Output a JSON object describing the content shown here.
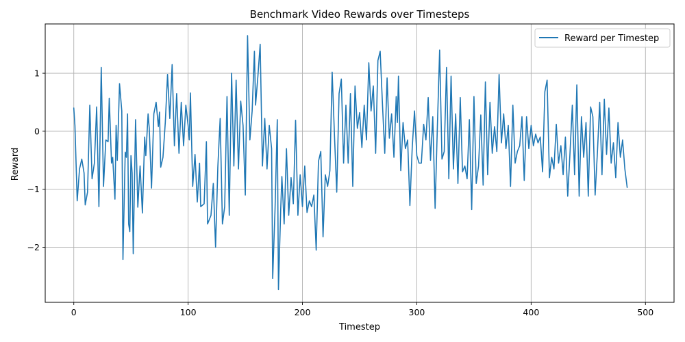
{
  "chart_data": {
    "type": "line",
    "title": "Benchmark Video Rewards over Timesteps",
    "xlabel": "Timestep",
    "ylabel": "Reward",
    "xlim": [
      -25,
      525
    ],
    "ylim": [
      -2.95,
      1.85
    ],
    "xticks": [
      0,
      100,
      200,
      300,
      400,
      500
    ],
    "yticks": [
      -2,
      -1,
      0,
      1
    ],
    "grid": true,
    "legend_position": "upper right",
    "series": [
      {
        "name": "Reward per Timestep",
        "color": "#1f77b4",
        "keypoints": [
          [
            0,
            0.4
          ],
          [
            1,
            0.1
          ],
          [
            3,
            -1.2
          ],
          [
            5,
            -0.65
          ],
          [
            7,
            -0.48
          ],
          [
            9,
            -0.72
          ],
          [
            10,
            -1.27
          ],
          [
            12,
            -1.05
          ],
          [
            14,
            0.45
          ],
          [
            16,
            -0.82
          ],
          [
            18,
            -0.55
          ],
          [
            20,
            0.42
          ],
          [
            22,
            -1.3
          ],
          [
            24,
            1.1
          ],
          [
            26,
            -0.95
          ],
          [
            28,
            -0.15
          ],
          [
            30,
            -0.18
          ],
          [
            31,
            0.57
          ],
          [
            33,
            -0.55
          ],
          [
            34,
            -0.45
          ],
          [
            36,
            -1.17
          ],
          [
            37,
            0.1
          ],
          [
            38,
            -0.5
          ],
          [
            40,
            0.82
          ],
          [
            42,
            0.35
          ],
          [
            43,
            -2.21
          ],
          [
            45,
            -0.36
          ],
          [
            46,
            -0.45
          ],
          [
            47,
            0.3
          ],
          [
            48,
            -1.6
          ],
          [
            49,
            -1.73
          ],
          [
            50,
            -0.42
          ],
          [
            51,
            -0.72
          ],
          [
            52,
            -2.11
          ],
          [
            54,
            0.2
          ],
          [
            56,
            -1.31
          ],
          [
            58,
            -0.6
          ],
          [
            60,
            -1.41
          ],
          [
            62,
            -0.1
          ],
          [
            63,
            -0.42
          ],
          [
            65,
            0.3
          ],
          [
            66,
            0.05
          ],
          [
            68,
            -0.98
          ],
          [
            70,
            0.3
          ],
          [
            72,
            0.5
          ],
          [
            74,
            0.08
          ],
          [
            75,
            0.33
          ],
          [
            76,
            -0.62
          ],
          [
            78,
            -0.45
          ],
          [
            80,
            0.15
          ],
          [
            82,
            0.98
          ],
          [
            84,
            0.22
          ],
          [
            86,
            1.15
          ],
          [
            88,
            -0.25
          ],
          [
            90,
            0.65
          ],
          [
            92,
            -0.38
          ],
          [
            94,
            0.5
          ],
          [
            96,
            -0.25
          ],
          [
            98,
            0.45
          ],
          [
            100,
            0.1
          ],
          [
            101,
            -0.15
          ],
          [
            102,
            0.66
          ],
          [
            104,
            -0.95
          ],
          [
            106,
            -0.4
          ],
          [
            108,
            -1.22
          ],
          [
            110,
            -0.55
          ],
          [
            111,
            -1.3
          ],
          [
            114,
            -1.25
          ],
          [
            116,
            -0.18
          ],
          [
            117,
            -1.6
          ],
          [
            120,
            -1.45
          ],
          [
            122,
            -0.9
          ],
          [
            124,
            -2.0
          ],
          [
            126,
            -0.62
          ],
          [
            128,
            0.22
          ],
          [
            130,
            -1.6
          ],
          [
            132,
            -1.3
          ],
          [
            134,
            0.6
          ],
          [
            136,
            -1.45
          ],
          [
            138,
            1.0
          ],
          [
            140,
            -0.6
          ],
          [
            142,
            0.88
          ],
          [
            144,
            -0.65
          ],
          [
            146,
            0.52
          ],
          [
            148,
            0.1
          ],
          [
            150,
            -1.1
          ],
          [
            152,
            1.65
          ],
          [
            154,
            -0.15
          ],
          [
            156,
            0.35
          ],
          [
            158,
            1.38
          ],
          [
            159,
            0.45
          ],
          [
            161,
            0.95
          ],
          [
            163,
            1.5
          ],
          [
            165,
            -0.6
          ],
          [
            167,
            0.22
          ],
          [
            169,
            -0.65
          ],
          [
            171,
            0.1
          ],
          [
            173,
            -0.3
          ],
          [
            174,
            -2.54
          ],
          [
            176,
            -1.35
          ],
          [
            178,
            0.2
          ],
          [
            179,
            -2.73
          ],
          [
            181,
            -1.35
          ],
          [
            182,
            -0.78
          ],
          [
            184,
            -1.6
          ],
          [
            186,
            -0.3
          ],
          [
            188,
            -1.45
          ],
          [
            190,
            -0.8
          ],
          [
            192,
            -1.25
          ],
          [
            194,
            0.19
          ],
          [
            196,
            -1.45
          ],
          [
            198,
            -0.75
          ],
          [
            200,
            -1.3
          ],
          [
            202,
            -0.6
          ],
          [
            204,
            -1.4
          ],
          [
            206,
            -1.2
          ],
          [
            208,
            -1.3
          ],
          [
            210,
            -1.1
          ],
          [
            212,
            -2.05
          ],
          [
            214,
            -0.52
          ],
          [
            216,
            -0.35
          ],
          [
            218,
            -1.82
          ],
          [
            220,
            -0.75
          ],
          [
            222,
            -0.95
          ],
          [
            224,
            -0.68
          ],
          [
            226,
            1.02
          ],
          [
            228,
            -0.08
          ],
          [
            230,
            -1.05
          ],
          [
            232,
            0.65
          ],
          [
            234,
            0.9
          ],
          [
            236,
            -0.55
          ],
          [
            238,
            0.45
          ],
          [
            240,
            -0.55
          ],
          [
            242,
            0.65
          ],
          [
            244,
            -0.95
          ],
          [
            246,
            0.78
          ],
          [
            248,
            0.05
          ],
          [
            250,
            0.32
          ],
          [
            252,
            -0.28
          ],
          [
            254,
            0.45
          ],
          [
            256,
            -0.15
          ],
          [
            258,
            1.18
          ],
          [
            260,
            0.35
          ],
          [
            262,
            0.78
          ],
          [
            264,
            -0.38
          ],
          [
            266,
            1.22
          ],
          [
            268,
            1.38
          ],
          [
            270,
            0.45
          ],
          [
            272,
            -0.38
          ],
          [
            274,
            0.92
          ],
          [
            276,
            -0.12
          ],
          [
            278,
            0.3
          ],
          [
            280,
            -0.45
          ],
          [
            282,
            0.6
          ],
          [
            283,
            0.15
          ],
          [
            284,
            0.95
          ],
          [
            286,
            -0.68
          ],
          [
            288,
            0.15
          ],
          [
            290,
            -0.3
          ],
          [
            292,
            -0.15
          ],
          [
            294,
            -1.28
          ],
          [
            296,
            -0.28
          ],
          [
            298,
            0.35
          ],
          [
            300,
            -0.42
          ],
          [
            302,
            -0.55
          ],
          [
            304,
            -0.55
          ],
          [
            306,
            0.12
          ],
          [
            308,
            -0.15
          ],
          [
            310,
            0.58
          ],
          [
            312,
            -0.5
          ],
          [
            314,
            0.25
          ],
          [
            316,
            -1.33
          ],
          [
            318,
            0.08
          ],
          [
            320,
            1.4
          ],
          [
            322,
            -0.48
          ],
          [
            324,
            -0.35
          ],
          [
            326,
            1.1
          ],
          [
            328,
            -0.82
          ],
          [
            330,
            0.95
          ],
          [
            332,
            -0.65
          ],
          [
            334,
            0.3
          ],
          [
            336,
            -0.9
          ],
          [
            338,
            0.58
          ],
          [
            340,
            -0.7
          ],
          [
            342,
            -0.6
          ],
          [
            344,
            -0.82
          ],
          [
            346,
            0.2
          ],
          [
            348,
            -1.35
          ],
          [
            350,
            0.6
          ],
          [
            352,
            -0.9
          ],
          [
            354,
            -0.6
          ],
          [
            356,
            0.28
          ],
          [
            358,
            -0.93
          ],
          [
            360,
            0.85
          ],
          [
            362,
            -0.75
          ],
          [
            364,
            0.5
          ],
          [
            366,
            -0.38
          ],
          [
            368,
            0.08
          ],
          [
            370,
            -0.35
          ],
          [
            372,
            0.98
          ],
          [
            374,
            -0.2
          ],
          [
            376,
            0.3
          ],
          [
            378,
            -0.3
          ],
          [
            380,
            0.1
          ],
          [
            382,
            -0.95
          ],
          [
            384,
            0.45
          ],
          [
            386,
            -0.55
          ],
          [
            388,
            -0.35
          ],
          [
            390,
            -0.25
          ],
          [
            392,
            0.25
          ],
          [
            394,
            -0.85
          ],
          [
            396,
            0.25
          ],
          [
            398,
            -0.3
          ],
          [
            400,
            0.1
          ],
          [
            402,
            -0.25
          ],
          [
            404,
            -0.05
          ],
          [
            406,
            -0.2
          ],
          [
            408,
            -0.1
          ],
          [
            410,
            -0.7
          ],
          [
            412,
            0.68
          ],
          [
            414,
            0.88
          ],
          [
            416,
            -0.8
          ],
          [
            418,
            -0.45
          ],
          [
            420,
            -0.65
          ],
          [
            422,
            0.12
          ],
          [
            424,
            -0.55
          ],
          [
            426,
            -0.25
          ],
          [
            428,
            -0.75
          ],
          [
            430,
            -0.1
          ],
          [
            432,
            -1.12
          ],
          [
            434,
            -0.38
          ],
          [
            436,
            0.45
          ],
          [
            438,
            -0.75
          ],
          [
            440,
            0.8
          ],
          [
            442,
            -1.12
          ],
          [
            444,
            0.25
          ],
          [
            446,
            -0.45
          ],
          [
            448,
            0.15
          ],
          [
            450,
            -1.12
          ],
          [
            452,
            0.42
          ],
          [
            454,
            0.25
          ],
          [
            456,
            -1.1
          ],
          [
            458,
            -0.35
          ],
          [
            460,
            0.5
          ],
          [
            462,
            -0.75
          ],
          [
            464,
            0.55
          ],
          [
            466,
            -0.4
          ],
          [
            468,
            0.4
          ],
          [
            470,
            -0.55
          ],
          [
            472,
            -0.2
          ],
          [
            474,
            -0.8
          ],
          [
            476,
            0.15
          ],
          [
            478,
            -0.45
          ],
          [
            480,
            -0.15
          ],
          [
            482,
            -0.65
          ],
          [
            484,
            -0.97
          ]
        ]
      }
    ]
  }
}
